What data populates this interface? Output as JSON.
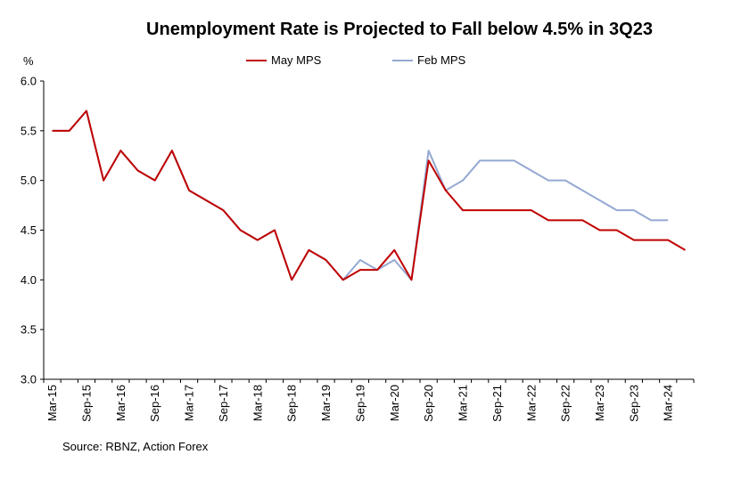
{
  "chart_data": {
    "type": "line",
    "title": "Unemployment Rate is Projected to Fall below 4.5% in 3Q23",
    "ylabel": "%",
    "ylim": [
      3.0,
      6.0
    ],
    "yticks": [
      "6.0",
      "5.5",
      "5.0",
      "4.5",
      "4.0",
      "3.5",
      "3.0"
    ],
    "xtick_labels": [
      "Mar-15",
      "Sep-15",
      "Mar-16",
      "Sep-16",
      "Mar-17",
      "Sep-17",
      "Mar-18",
      "Sep-18",
      "Mar-19",
      "Sep-19",
      "Mar-20",
      "Sep-20",
      "Mar-21",
      "Sep-21",
      "Mar-22",
      "Sep-22",
      "Mar-23",
      "Sep-23",
      "Mar-24"
    ],
    "legend": [
      "May MPS",
      "Feb MPS"
    ],
    "series": [
      {
        "name": "May MPS",
        "color": "#c00000",
        "values": [
          5.5,
          5.5,
          5.7,
          5.0,
          5.3,
          5.1,
          5.0,
          5.3,
          4.9,
          4.8,
          4.7,
          4.5,
          4.4,
          4.5,
          4.0,
          4.3,
          4.2,
          4.0,
          4.1,
          4.1,
          4.3,
          4.0,
          5.2,
          4.9,
          4.7,
          4.7,
          4.7,
          4.7,
          4.7,
          4.6,
          4.6,
          4.6,
          4.5,
          4.5,
          4.4,
          4.4,
          4.4,
          4.3
        ]
      },
      {
        "name": "Feb MPS",
        "color": "#95a9d3",
        "values": [
          5.5,
          5.5,
          5.7,
          5.0,
          5.3,
          5.1,
          5.0,
          5.3,
          4.9,
          4.8,
          4.7,
          4.5,
          4.4,
          4.5,
          4.0,
          4.3,
          4.2,
          4.0,
          4.2,
          4.1,
          4.2,
          4.0,
          5.3,
          4.9,
          5.0,
          5.2,
          5.2,
          5.2,
          5.1,
          5.0,
          5.0,
          4.9,
          4.8,
          4.7,
          4.7,
          4.6,
          4.6
        ]
      }
    ],
    "source": "Source: RBNZ, Action Forex"
  }
}
